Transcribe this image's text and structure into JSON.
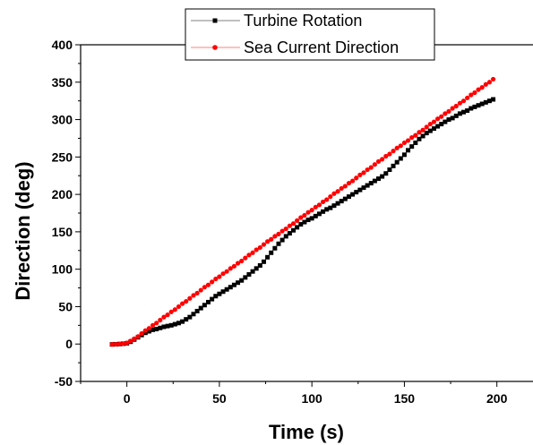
{
  "chart_data": {
    "type": "scatter",
    "title": "",
    "xlabel": "Time (s)",
    "ylabel": "Direction (deg)",
    "xlim": [
      -25,
      220
    ],
    "ylim": [
      -50,
      400
    ],
    "xticks": [
      0,
      50,
      100,
      150,
      200
    ],
    "yticks": [
      -50,
      0,
      50,
      100,
      150,
      200,
      250,
      300,
      350,
      400
    ],
    "grid": false,
    "legend_position": "top",
    "series": [
      {
        "name": "Turbine Rotation",
        "marker": "square",
        "color": "#000000",
        "x": [
          -8,
          -6,
          -4,
          -2,
          0,
          2,
          4,
          6,
          8,
          10,
          12,
          14,
          16,
          18,
          20,
          22,
          24,
          26,
          28,
          30,
          32,
          34,
          36,
          38,
          40,
          42,
          44,
          46,
          48,
          50,
          52,
          54,
          56,
          58,
          60,
          62,
          64,
          66,
          68,
          70,
          72,
          74,
          76,
          78,
          80,
          82,
          84,
          86,
          88,
          90,
          92,
          94,
          96,
          98,
          100,
          102,
          104,
          106,
          108,
          110,
          112,
          114,
          116,
          118,
          120,
          122,
          124,
          126,
          128,
          130,
          132,
          134,
          136,
          138,
          140,
          142,
          144,
          146,
          148,
          150,
          152,
          154,
          156,
          158,
          160,
          162,
          164,
          166,
          168,
          170,
          172,
          174,
          176,
          178,
          180,
          182,
          184,
          186,
          188,
          190,
          192,
          194,
          196,
          198
        ],
        "y": [
          -0.5,
          -0.3,
          0,
          0.4,
          1,
          3,
          6,
          9,
          12,
          15,
          17,
          19,
          20,
          21.5,
          23,
          24,
          25,
          26.5,
          28,
          30,
          33,
          36,
          40,
          44,
          48,
          52,
          56,
          60,
          64,
          67,
          70,
          73,
          76,
          79,
          82,
          85,
          89,
          93,
          97,
          101,
          105,
          110,
          116,
          122,
          128,
          134,
          139,
          144,
          148,
          152,
          156,
          160,
          163,
          166,
          168,
          171,
          174,
          177,
          180,
          182,
          185,
          188,
          191,
          194,
          197,
          200,
          203,
          206,
          209,
          212,
          215,
          218,
          221,
          224,
          228,
          233,
          238,
          243,
          248,
          253,
          259,
          264,
          269,
          274,
          278,
          282,
          285,
          288,
          291,
          294,
          297,
          300,
          302,
          305,
          308,
          310,
          312,
          315,
          317,
          319,
          321,
          323,
          325,
          327
        ]
      },
      {
        "name": "Sea Current Direction",
        "marker": "circle",
        "color": "#ff0000",
        "x": [
          -8,
          -6,
          -4,
          -2,
          0,
          2,
          4,
          6,
          8,
          10,
          12,
          14,
          16,
          18,
          20,
          22,
          24,
          26,
          28,
          30,
          32,
          34,
          36,
          38,
          40,
          42,
          44,
          46,
          48,
          50,
          52,
          54,
          56,
          58,
          60,
          62,
          64,
          66,
          68,
          70,
          72,
          74,
          76,
          78,
          80,
          82,
          84,
          86,
          88,
          90,
          92,
          94,
          96,
          98,
          100,
          102,
          104,
          106,
          108,
          110,
          112,
          114,
          116,
          118,
          120,
          122,
          124,
          126,
          128,
          130,
          132,
          134,
          136,
          138,
          140,
          142,
          144,
          146,
          148,
          150,
          152,
          154,
          156,
          158,
          160,
          162,
          164,
          166,
          168,
          170,
          172,
          174,
          176,
          178,
          180,
          182,
          184,
          186,
          188,
          190,
          192,
          194,
          196,
          198
        ],
        "y": [
          -0.5,
          -0.3,
          0,
          0.5,
          1.5,
          4,
          7,
          10,
          14,
          18,
          21,
          25,
          28,
          32,
          36,
          39,
          43,
          46,
          50,
          54,
          57,
          61,
          65,
          68,
          72,
          76,
          79,
          83,
          87,
          90,
          94,
          97,
          101,
          104,
          108,
          111,
          115,
          119,
          122,
          126,
          129,
          133,
          137,
          140,
          144,
          147,
          151,
          154,
          158,
          161,
          165,
          169,
          172,
          176,
          179,
          183,
          186,
          190,
          193,
          197,
          201,
          204,
          208,
          211,
          215,
          218,
          222,
          226,
          229,
          233,
          236,
          240,
          244,
          247,
          251,
          254,
          258,
          262,
          265,
          269,
          272,
          276,
          279,
          283,
          286,
          290,
          294,
          297,
          301,
          304,
          308,
          311,
          315,
          318,
          322,
          325,
          329,
          333,
          336,
          340,
          343,
          347,
          350,
          354
        ]
      }
    ]
  }
}
